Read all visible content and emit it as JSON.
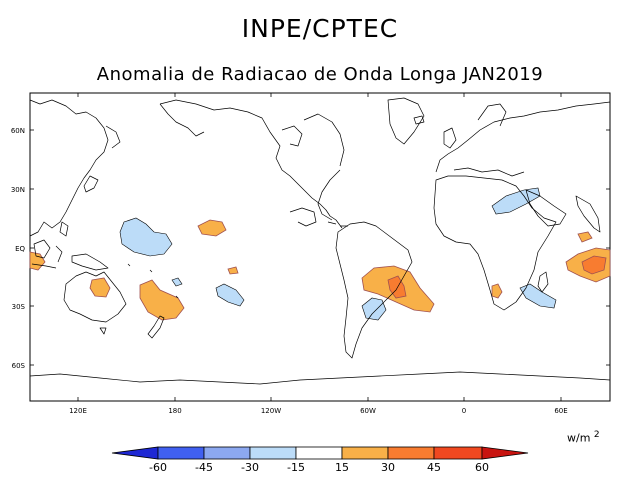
{
  "header": {
    "title": "INPE/CPTEC",
    "subtitle": "Anomalia de Radiacao de Onda Longa JAN2019"
  },
  "map": {
    "lat_labels": [
      "60N",
      "30N",
      "EQ",
      "30S",
      "60S"
    ],
    "lon_labels": [
      "120E",
      "180",
      "120W",
      "60W",
      "0",
      "60E"
    ]
  },
  "colorbar": {
    "units": "w/m",
    "units_exp": "2",
    "ticks": [
      "-60",
      "-45",
      "-30",
      "-15",
      "15",
      "30",
      "45",
      "60"
    ],
    "colors": [
      "#1e28d4",
      "#4060f0",
      "#8ca8f0",
      "#bcdcf8",
      "#ffffff",
      "#f8b048",
      "#f87c30",
      "#f04820",
      "#c81410"
    ]
  },
  "colors": {
    "land_outline": "#000000",
    "contour_outline": "#a05050"
  }
}
